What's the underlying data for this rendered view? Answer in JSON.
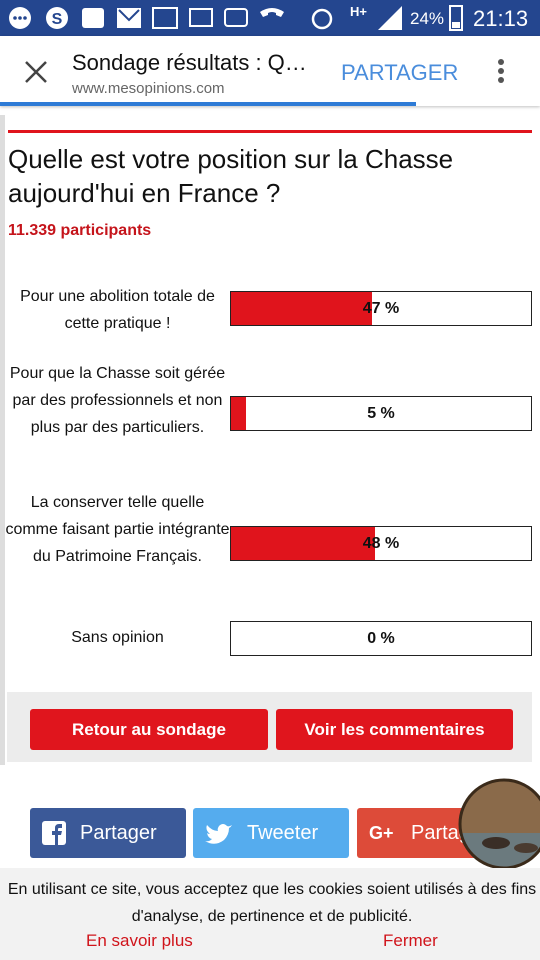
{
  "status_bar": {
    "network": "H+",
    "battery": "24%",
    "time": "21:13"
  },
  "toolbar": {
    "title": "Sondage résultats : Q…",
    "url": "www.mesopinions.com",
    "share": "PARTAGER"
  },
  "poll": {
    "type": "bar",
    "question": "Quelle est votre position sur la Chasse aujourd'hui en France ?",
    "participants": "11.339 participants",
    "categories": [
      "Pour une abolition totale de cette pratique !",
      "Pour que la Chasse soit gérée par des professionnels et non plus par des particuliers.",
      "La conserver telle quelle comme faisant partie intégrante du Patrimoine Français.",
      "Sans opinion"
    ],
    "values": [
      47,
      5,
      48,
      0
    ],
    "value_labels": [
      "47 %",
      "5 %",
      "48 %",
      "0 %"
    ],
    "xlim": [
      0,
      100
    ],
    "color": "#e0141c"
  },
  "buttons": [
    "Retour au sondage",
    "Voir les commentaires"
  ],
  "social": [
    "Partager",
    "Tweeter",
    "Partager"
  ],
  "cookie": {
    "text": "En utilisant ce site, vous acceptez que les cookies soient utilisés à des fins d'analyse, de pertinence et de publicité.",
    "more": "En savoir plus",
    "close": "Fermer"
  }
}
